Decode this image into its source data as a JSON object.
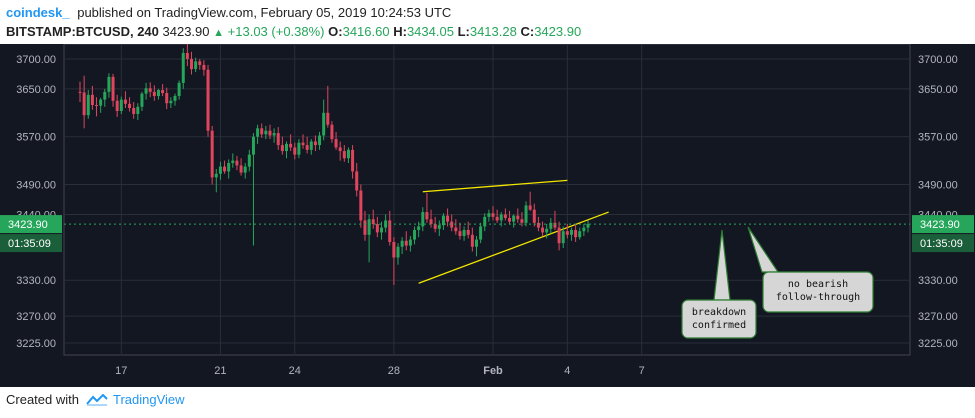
{
  "header": {
    "publisher": "coindesk_",
    "published_text": "published on TradingView.com, February 05, 2019 10:24:53 UTC",
    "symbol": "BITSTAMP:BTCUSD, 240",
    "price": "3423.90",
    "change": "+13.03 (+0.38%)",
    "o_label": "O:",
    "o_value": "3416.60",
    "h_label": "H:",
    "h_value": "3434.05",
    "l_label": "L:",
    "l_value": "3413.28",
    "c_label": "C:",
    "c_value": "3423.90"
  },
  "footer": {
    "created_with": "Created with",
    "brand": "TradingView"
  },
  "colors": {
    "up": "#26a65b",
    "down": "#e0455e",
    "background": "#131722",
    "trendline": "#f2e600",
    "price_tag": "#26a65b"
  },
  "chart_data": {
    "type": "candlestick",
    "yticks": [
      3700,
      3650,
      3570,
      3490,
      3440,
      3330,
      3270,
      3225
    ],
    "ylabels": [
      "3700.00",
      "3650.00",
      "3570.00",
      "3490.00",
      "3440.00",
      "3330.00",
      "3270.00",
      "3225.00"
    ],
    "ylim": [
      3205,
      3725
    ],
    "xticks": [
      {
        "label": "17",
        "bar": 10
      },
      {
        "label": "21",
        "bar": 34
      },
      {
        "label": "24",
        "bar": 52
      },
      {
        "label": "28",
        "bar": 76
      },
      {
        "label": "Feb",
        "bar": 100
      },
      {
        "label": "4",
        "bar": 118
      },
      {
        "label": "7",
        "bar": 136
      }
    ],
    "current_price": "3423.90",
    "countdown": "01:35:09",
    "trendlines": [
      {
        "from": [
          83,
          3478
        ],
        "to": [
          118,
          3497
        ]
      },
      {
        "from": [
          82,
          3325
        ],
        "to": [
          128,
          3444
        ]
      }
    ],
    "annotations": [
      {
        "text": [
          "breakdown",
          "confirmed"
        ]
      },
      {
        "text": [
          "no bearish",
          "follow-through"
        ]
      }
    ],
    "ohlc": [
      [
        3645,
        3662,
        3628,
        3644
      ],
      [
        3644,
        3672,
        3584,
        3606
      ],
      [
        3606,
        3648,
        3600,
        3640
      ],
      [
        3640,
        3655,
        3615,
        3623
      ],
      [
        3623,
        3636,
        3604,
        3622
      ],
      [
        3622,
        3635,
        3610,
        3632
      ],
      [
        3632,
        3650,
        3620,
        3645
      ],
      [
        3645,
        3676,
        3635,
        3670
      ],
      [
        3670,
        3675,
        3620,
        3630
      ],
      [
        3630,
        3640,
        3603,
        3613
      ],
      [
        3613,
        3637,
        3608,
        3632
      ],
      [
        3632,
        3646,
        3618,
        3625
      ],
      [
        3625,
        3636,
        3612,
        3618
      ],
      [
        3618,
        3628,
        3600,
        3608
      ],
      [
        3608,
        3626,
        3598,
        3620
      ],
      [
        3620,
        3645,
        3613,
        3642
      ],
      [
        3642,
        3660,
        3632,
        3651
      ],
      [
        3651,
        3661,
        3636,
        3645
      ],
      [
        3645,
        3656,
        3630,
        3638
      ],
      [
        3638,
        3650,
        3632,
        3648
      ],
      [
        3648,
        3658,
        3638,
        3643
      ],
      [
        3643,
        3652,
        3616,
        3626
      ],
      [
        3626,
        3636,
        3618,
        3630
      ],
      [
        3630,
        3642,
        3622,
        3638
      ],
      [
        3638,
        3664,
        3632,
        3660
      ],
      [
        3660,
        3718,
        3650,
        3710
      ],
      [
        3710,
        3725,
        3688,
        3700
      ],
      [
        3700,
        3712,
        3674,
        3683
      ],
      [
        3683,
        3702,
        3678,
        3696
      ],
      [
        3696,
        3700,
        3682,
        3690
      ],
      [
        3690,
        3698,
        3672,
        3682
      ],
      [
        3682,
        3690,
        3570,
        3580
      ],
      [
        3580,
        3588,
        3490,
        3502
      ],
      [
        3502,
        3516,
        3477,
        3508
      ],
      [
        3508,
        3528,
        3498,
        3520
      ],
      [
        3520,
        3530,
        3508,
        3512
      ],
      [
        3512,
        3532,
        3500,
        3526
      ],
      [
        3526,
        3542,
        3518,
        3530
      ],
      [
        3530,
        3538,
        3514,
        3522
      ],
      [
        3522,
        3534,
        3505,
        3510
      ],
      [
        3510,
        3526,
        3500,
        3520
      ],
      [
        3520,
        3548,
        3512,
        3540
      ],
      [
        3540,
        3576,
        3388,
        3570
      ],
      [
        3570,
        3590,
        3558,
        3584
      ],
      [
        3584,
        3592,
        3568,
        3574
      ],
      [
        3574,
        3588,
        3566,
        3580
      ],
      [
        3580,
        3590,
        3566,
        3572
      ],
      [
        3572,
        3584,
        3560,
        3576
      ],
      [
        3576,
        3586,
        3548,
        3556
      ],
      [
        3556,
        3570,
        3540,
        3546
      ],
      [
        3546,
        3562,
        3534,
        3558
      ],
      [
        3558,
        3574,
        3546,
        3552
      ],
      [
        3552,
        3560,
        3532,
        3540
      ],
      [
        3540,
        3566,
        3534,
        3560
      ],
      [
        3560,
        3574,
        3550,
        3556
      ],
      [
        3556,
        3570,
        3542,
        3548
      ],
      [
        3548,
        3566,
        3540,
        3562
      ],
      [
        3562,
        3572,
        3546,
        3556
      ],
      [
        3556,
        3578,
        3548,
        3572
      ],
      [
        3572,
        3632,
        3564,
        3610
      ],
      [
        3610,
        3655,
        3585,
        3590
      ],
      [
        3590,
        3596,
        3560,
        3566
      ],
      [
        3566,
        3578,
        3548,
        3552
      ],
      [
        3552,
        3562,
        3530,
        3546
      ],
      [
        3546,
        3556,
        3528,
        3534
      ],
      [
        3534,
        3552,
        3526,
        3548
      ],
      [
        3548,
        3556,
        3500,
        3512
      ],
      [
        3512,
        3526,
        3470,
        3480
      ],
      [
        3480,
        3490,
        3418,
        3430
      ],
      [
        3430,
        3446,
        3396,
        3406
      ],
      [
        3406,
        3440,
        3360,
        3432
      ],
      [
        3432,
        3448,
        3416,
        3424
      ],
      [
        3424,
        3436,
        3402,
        3410
      ],
      [
        3410,
        3428,
        3398,
        3418
      ],
      [
        3418,
        3440,
        3410,
        3430
      ],
      [
        3430,
        3446,
        3388,
        3394
      ],
      [
        3394,
        3402,
        3322,
        3368
      ],
      [
        3368,
        3392,
        3356,
        3386
      ],
      [
        3386,
        3402,
        3374,
        3396
      ],
      [
        3396,
        3412,
        3380,
        3388
      ],
      [
        3388,
        3404,
        3378,
        3398
      ],
      [
        3398,
        3420,
        3390,
        3414
      ],
      [
        3414,
        3428,
        3402,
        3420
      ],
      [
        3420,
        3452,
        3412,
        3444
      ],
      [
        3444,
        3476,
        3426,
        3432
      ],
      [
        3432,
        3448,
        3418,
        3424
      ],
      [
        3424,
        3436,
        3410,
        3416
      ],
      [
        3416,
        3430,
        3404,
        3422
      ],
      [
        3422,
        3442,
        3414,
        3438
      ],
      [
        3438,
        3450,
        3420,
        3428
      ],
      [
        3428,
        3440,
        3412,
        3418
      ],
      [
        3418,
        3432,
        3406,
        3412
      ],
      [
        3412,
        3426,
        3398,
        3404
      ],
      [
        3404,
        3420,
        3396,
        3414
      ],
      [
        3414,
        3428,
        3400,
        3406
      ],
      [
        3406,
        3418,
        3378,
        3386
      ],
      [
        3386,
        3404,
        3370,
        3398
      ],
      [
        3398,
        3426,
        3392,
        3420
      ],
      [
        3420,
        3442,
        3412,
        3436
      ],
      [
        3436,
        3448,
        3428,
        3442
      ],
      [
        3442,
        3454,
        3430,
        3436
      ],
      [
        3436,
        3448,
        3426,
        3430
      ],
      [
        3430,
        3444,
        3420,
        3440
      ],
      [
        3440,
        3450,
        3430,
        3434
      ],
      [
        3434,
        3446,
        3424,
        3428
      ],
      [
        3428,
        3440,
        3418,
        3438
      ],
      [
        3438,
        3450,
        3426,
        3432
      ],
      [
        3432,
        3444,
        3420,
        3426
      ],
      [
        3426,
        3462,
        3420,
        3455
      ],
      [
        3455,
        3478,
        3446,
        3448
      ],
      [
        3448,
        3458,
        3420,
        3426
      ],
      [
        3426,
        3436,
        3412,
        3418
      ],
      [
        3418,
        3428,
        3404,
        3410
      ],
      [
        3410,
        3424,
        3400,
        3416
      ],
      [
        3416,
        3434,
        3408,
        3426
      ],
      [
        3426,
        3446,
        3414,
        3418
      ],
      [
        3418,
        3428,
        3380,
        3392
      ],
      [
        3392,
        3420,
        3384,
        3412
      ],
      [
        3412,
        3424,
        3400,
        3406
      ],
      [
        3406,
        3418,
        3396,
        3414
      ],
      [
        3414,
        3424,
        3394,
        3402
      ],
      [
        3402,
        3418,
        3398,
        3412
      ],
      [
        3412,
        3424,
        3404,
        3418
      ],
      [
        3418,
        3430,
        3410,
        3424
      ]
    ]
  }
}
